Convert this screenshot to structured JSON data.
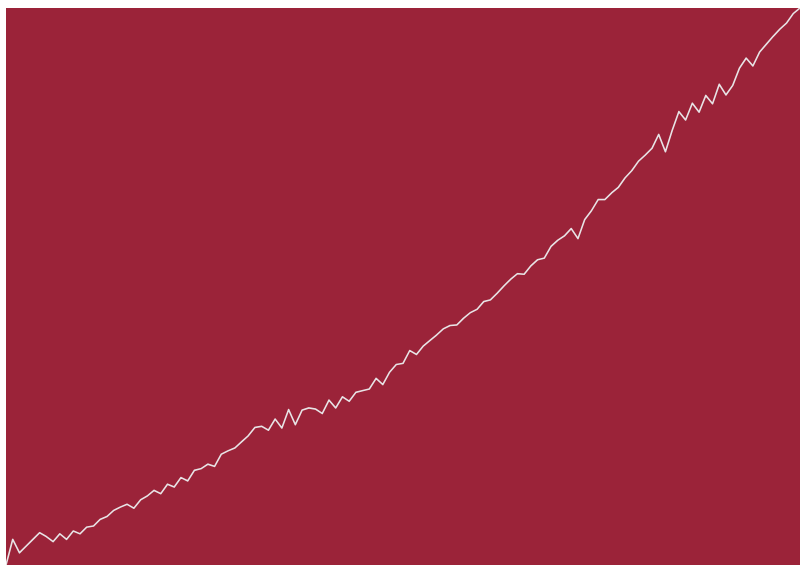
{
  "chart_data": {
    "type": "line",
    "title": "",
    "xlabel": "",
    "ylabel": "",
    "background_color": "#9B2339",
    "line_color": "#E8E4E6",
    "grid": false,
    "legend": "none",
    "axes_visible": false,
    "xlim": [
      0,
      118
    ],
    "ylim": [
      0,
      100
    ],
    "series": [
      {
        "values": [
          0,
          4.6,
          2.2,
          3.4,
          4.6,
          5.8,
          5.1,
          4.2,
          5.6,
          4.6,
          6.1,
          5.6,
          6.8,
          7.0,
          8.2,
          8.7,
          9.8,
          10.4,
          10.9,
          10.2,
          11.7,
          12.4,
          13.4,
          12.8,
          14.5,
          14.0,
          15.7,
          15.1,
          17.0,
          17.3,
          18.1,
          17.7,
          19.9,
          20.5,
          21.0,
          22.1,
          23.2,
          24.7,
          24.9,
          24.2,
          26.2,
          24.6,
          27.9,
          25.2,
          27.8,
          28.2,
          28.0,
          27.2,
          29.6,
          28.2,
          30.2,
          29.4,
          31.0,
          31.3,
          31.6,
          33.5,
          32.4,
          34.6,
          36.0,
          36.2,
          38.5,
          37.8,
          39.3,
          40.3,
          41.3,
          42.4,
          43.0,
          43.1,
          44.3,
          45.3,
          45.9,
          47.3,
          47.6,
          48.8,
          50.1,
          51.3,
          52.3,
          52.2,
          53.7,
          54.8,
          55.1,
          57.2,
          58.3,
          59.1,
          60.4,
          58.6,
          62.0,
          63.6,
          65.6,
          65.6,
          66.8,
          67.8,
          69.5,
          70.8,
          72.5,
          73.6,
          74.8,
          77.3,
          74.2,
          78.0,
          81.4,
          79.9,
          82.9,
          81.3,
          84.3,
          82.8,
          86.3,
          84.4,
          86.1,
          89.2,
          91.0,
          89.6,
          92.1,
          93.5,
          94.9,
          96.2,
          97.3,
          99.0,
          100.0
        ]
      }
    ]
  }
}
